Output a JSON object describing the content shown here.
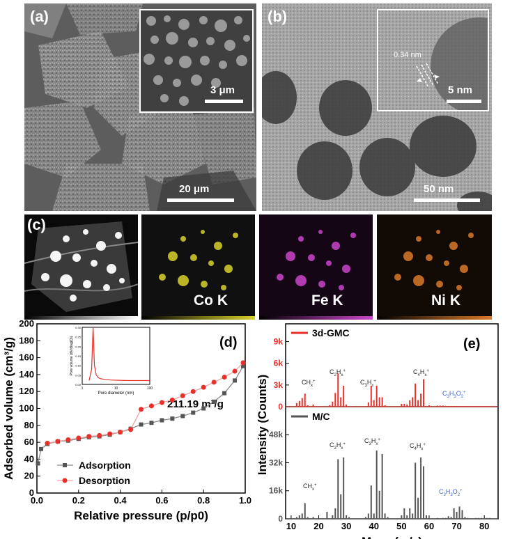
{
  "panel_a": {
    "label": "(a)",
    "scale_main": "20 μm",
    "scale_inset": "3 μm"
  },
  "panel_b": {
    "label": "(b)",
    "scale_main": "50 nm",
    "scale_inset": "5 nm",
    "lattice": "0.34 nm"
  },
  "panel_c": {
    "label": "(c)",
    "maps": [
      {
        "label": "Co K",
        "color": "#d8d22a"
      },
      {
        "label": "Fe K",
        "color": "#cc44cc"
      },
      {
        "label": "Ni K",
        "color": "#d9792a"
      }
    ]
  },
  "chart_d": {
    "label": "(d)",
    "annotation": "211.19 m²/g",
    "xlabel": "Relative pressure (p/p0)",
    "ylabel": "Adsorbed volume (cm³/g)",
    "xticks": [
      "0.0",
      "0.2",
      "0.4",
      "0.6",
      "0.8",
      "1.0"
    ],
    "yticks": [
      "0",
      "20",
      "40",
      "60",
      "80",
      "100",
      "120",
      "140",
      "160",
      "180",
      "200"
    ],
    "legend": [
      "Adsorption",
      "Desorption"
    ],
    "inset": {
      "xlabel": "Pore diameter (nm)",
      "ylabel": "Pore volume (dV/dlog(D))",
      "xticks": [
        "1",
        "10",
        "100"
      ],
      "yticks": [
        "0.00",
        "0.05",
        "0.10",
        "0.15",
        "0.20",
        "0.25",
        "0.30"
      ]
    }
  },
  "chart_e": {
    "label": "(e)",
    "xlabel": "Mass (m/z)",
    "ylabel": "Intensity (Counts)",
    "xticks": [
      "10",
      "20",
      "30",
      "40",
      "50",
      "60",
      "70",
      "80"
    ],
    "top": {
      "name": "3d-GMC",
      "yticks": [
        "0",
        "3k",
        "6k",
        "9k"
      ]
    },
    "bottom": {
      "name": "M/C",
      "yticks": [
        "0",
        "16k",
        "32k",
        "48k"
      ]
    },
    "annotations": {
      "ch": "CH",
      "c2": "C",
      "c3": "C",
      "c4": "C",
      "c3o": "C",
      "sup_plus": "+",
      "sub_x": "x",
      "sub_2": "2",
      "sub_3": "3",
      "sub_4": "4",
      "h": "H",
      "o": "O"
    }
  },
  "chart_data": [
    {
      "type": "line",
      "title": "",
      "xlabel": "Relative pressure (p/p0)",
      "ylabel": "Adsorbed volume (cm³/g)",
      "xlim": [
        0,
        1.0
      ],
      "ylim": [
        0,
        200
      ],
      "legend_position": "bottom-left",
      "series": [
        {
          "name": "Adsorption",
          "color": "#555555",
          "x": [
            0.005,
            0.02,
            0.05,
            0.1,
            0.15,
            0.2,
            0.25,
            0.3,
            0.35,
            0.4,
            0.45,
            0.5,
            0.55,
            0.6,
            0.65,
            0.7,
            0.75,
            0.8,
            0.85,
            0.9,
            0.95,
            0.99
          ],
          "y": [
            35,
            52,
            58,
            61,
            62,
            64,
            66,
            67,
            69,
            72,
            76,
            81,
            83,
            86,
            88,
            91,
            95,
            100,
            108,
            118,
            133,
            150
          ]
        },
        {
          "name": "Desorption",
          "color": "#e8302a",
          "x": [
            0.05,
            0.1,
            0.15,
            0.2,
            0.25,
            0.3,
            0.35,
            0.4,
            0.45,
            0.5,
            0.55,
            0.6,
            0.65,
            0.7,
            0.75,
            0.8,
            0.85,
            0.9,
            0.95,
            0.99
          ],
          "y": [
            59,
            61,
            63,
            65,
            67,
            68,
            70,
            72,
            75,
            99,
            103,
            107,
            110,
            115,
            120,
            125,
            131,
            137,
            144,
            154
          ]
        }
      ]
    },
    {
      "type": "line",
      "title": "",
      "xlabel": "Pore diameter (nm)",
      "ylabel": "Pore volume (dV/dlog(D))",
      "xscale": "log",
      "xlim": [
        1,
        100
      ],
      "ylim": [
        0,
        0.3
      ],
      "series": [
        {
          "name": "",
          "color": "#e8302a",
          "x": [
            1.6,
            1.9,
            2.1,
            2.3,
            2.6,
            3,
            3.5,
            4,
            5,
            7,
            10,
            15,
            25,
            40,
            70,
            100
          ],
          "y": [
            0.02,
            0.08,
            0.3,
            0.1,
            0.05,
            0.035,
            0.03,
            0.028,
            0.025,
            0.023,
            0.022,
            0.021,
            0.02,
            0.02,
            0.02,
            0.02
          ]
        }
      ]
    },
    {
      "type": "bar",
      "title": "",
      "xlabel": "Mass (m/z)",
      "ylabel": "Intensity (Counts)",
      "xlim": [
        8,
        85
      ],
      "ylim": [
        0,
        10000
      ],
      "series": [
        {
          "name": "3d-GMC",
          "color": "#e8302a",
          "x": [
            12,
            13,
            14,
            15,
            16,
            18,
            24,
            25,
            26,
            27,
            28,
            29,
            30,
            38,
            39,
            40,
            41,
            42,
            43,
            44,
            50,
            51,
            52,
            53,
            54,
            55,
            56,
            57,
            58,
            60,
            63,
            64,
            65,
            66,
            67,
            68,
            69,
            70,
            71,
            72,
            73,
            74,
            75,
            76,
            77,
            78,
            79,
            80,
            81,
            82
          ],
          "y": [
            500,
            800,
            1200,
            1800,
            200,
            300,
            200,
            700,
            1900,
            4600,
            1300,
            2900,
            300,
            600,
            2900,
            900,
            2900,
            1300,
            1300,
            200,
            400,
            400,
            300,
            900,
            1300,
            3200,
            900,
            1800,
            3800,
            200,
            150,
            150,
            150,
            100,
            100,
            100,
            100,
            100,
            100,
            80,
            80,
            80,
            80,
            80,
            80,
            80,
            80,
            80,
            80,
            80
          ]
        }
      ]
    },
    {
      "type": "bar",
      "title": "",
      "xlabel": "Mass (m/z)",
      "ylabel": "Intensity (Counts)",
      "xlim": [
        8,
        85
      ],
      "ylim": [
        0,
        60000
      ],
      "series": [
        {
          "name": "M/C",
          "color": "#555555",
          "x": [
            12,
            13,
            14,
            15,
            16,
            18,
            23,
            25,
            26,
            27,
            28,
            29,
            30,
            31,
            37,
            38,
            39,
            40,
            41,
            42,
            43,
            44,
            45,
            50,
            51,
            52,
            53,
            54,
            55,
            56,
            57,
            58,
            59,
            63,
            65,
            66,
            67,
            68,
            69,
            70,
            71,
            72,
            73,
            74,
            77,
            78,
            79,
            80,
            81,
            82
          ],
          "y": [
            1000,
            2000,
            3000,
            9000,
            1000,
            1000,
            4000,
            2000,
            6000,
            34000,
            14000,
            35000,
            2000,
            1000,
            1000,
            3000,
            19000,
            3000,
            39000,
            16000,
            37000,
            3000,
            1000,
            2000,
            6000,
            2000,
            6000,
            3000,
            32000,
            12000,
            35000,
            30000,
            2000,
            500,
            500,
            500,
            1500,
            1000,
            6000,
            4000,
            7000,
            5000,
            1000,
            500,
            500,
            500,
            500,
            500,
            500,
            500
          ]
        }
      ]
    }
  ]
}
